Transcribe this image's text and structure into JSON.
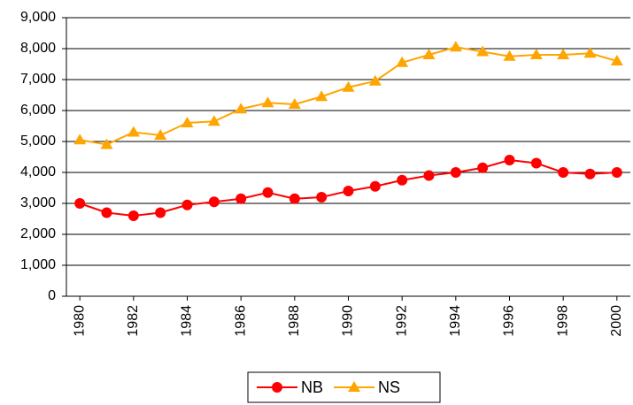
{
  "chart_data": {
    "type": "line",
    "x": [
      1980,
      1981,
      1982,
      1983,
      1984,
      1985,
      1986,
      1987,
      1988,
      1989,
      1990,
      1991,
      1992,
      1993,
      1994,
      1995,
      1996,
      1997,
      1998,
      1999,
      2000
    ],
    "xlim": [
      1979.5,
      2000.5
    ],
    "xticks": [
      1980,
      1982,
      1984,
      1986,
      1988,
      1990,
      1992,
      1994,
      1996,
      1998,
      2000
    ],
    "ylim": [
      0,
      9000
    ],
    "yticks": [
      0,
      {
        "value": 1000,
        "label": "1,000"
      },
      {
        "value": 2000,
        "label": "2,000"
      },
      {
        "value": 3000,
        "label": "3,000"
      },
      {
        "value": 4000,
        "label": "4,000"
      },
      {
        "value": 5000,
        "label": "5,000"
      },
      {
        "value": 6000,
        "label": "6,000"
      },
      {
        "value": 7000,
        "label": "7,000"
      },
      {
        "value": 8000,
        "label": "8,000"
      },
      {
        "value": 9000,
        "label": "9,000"
      }
    ],
    "grid": true,
    "legend": "bottom",
    "series": [
      {
        "name": "NB",
        "color": "#ff0000",
        "marker": "circle",
        "values": [
          3000,
          2700,
          2600,
          2700,
          2950,
          3050,
          3150,
          3350,
          3150,
          3200,
          3400,
          3550,
          3750,
          3900,
          4000,
          4150,
          4400,
          4300,
          4000,
          3950,
          4000
        ]
      },
      {
        "name": "NS",
        "color": "#ffa500",
        "marker": "triangle",
        "values": [
          5050,
          4900,
          5300,
          5200,
          5600,
          5650,
          6050,
          6250,
          6200,
          6450,
          6750,
          6950,
          7550,
          7800,
          8050,
          7900,
          7750,
          7800,
          7800,
          7850,
          7600
        ]
      }
    ]
  }
}
